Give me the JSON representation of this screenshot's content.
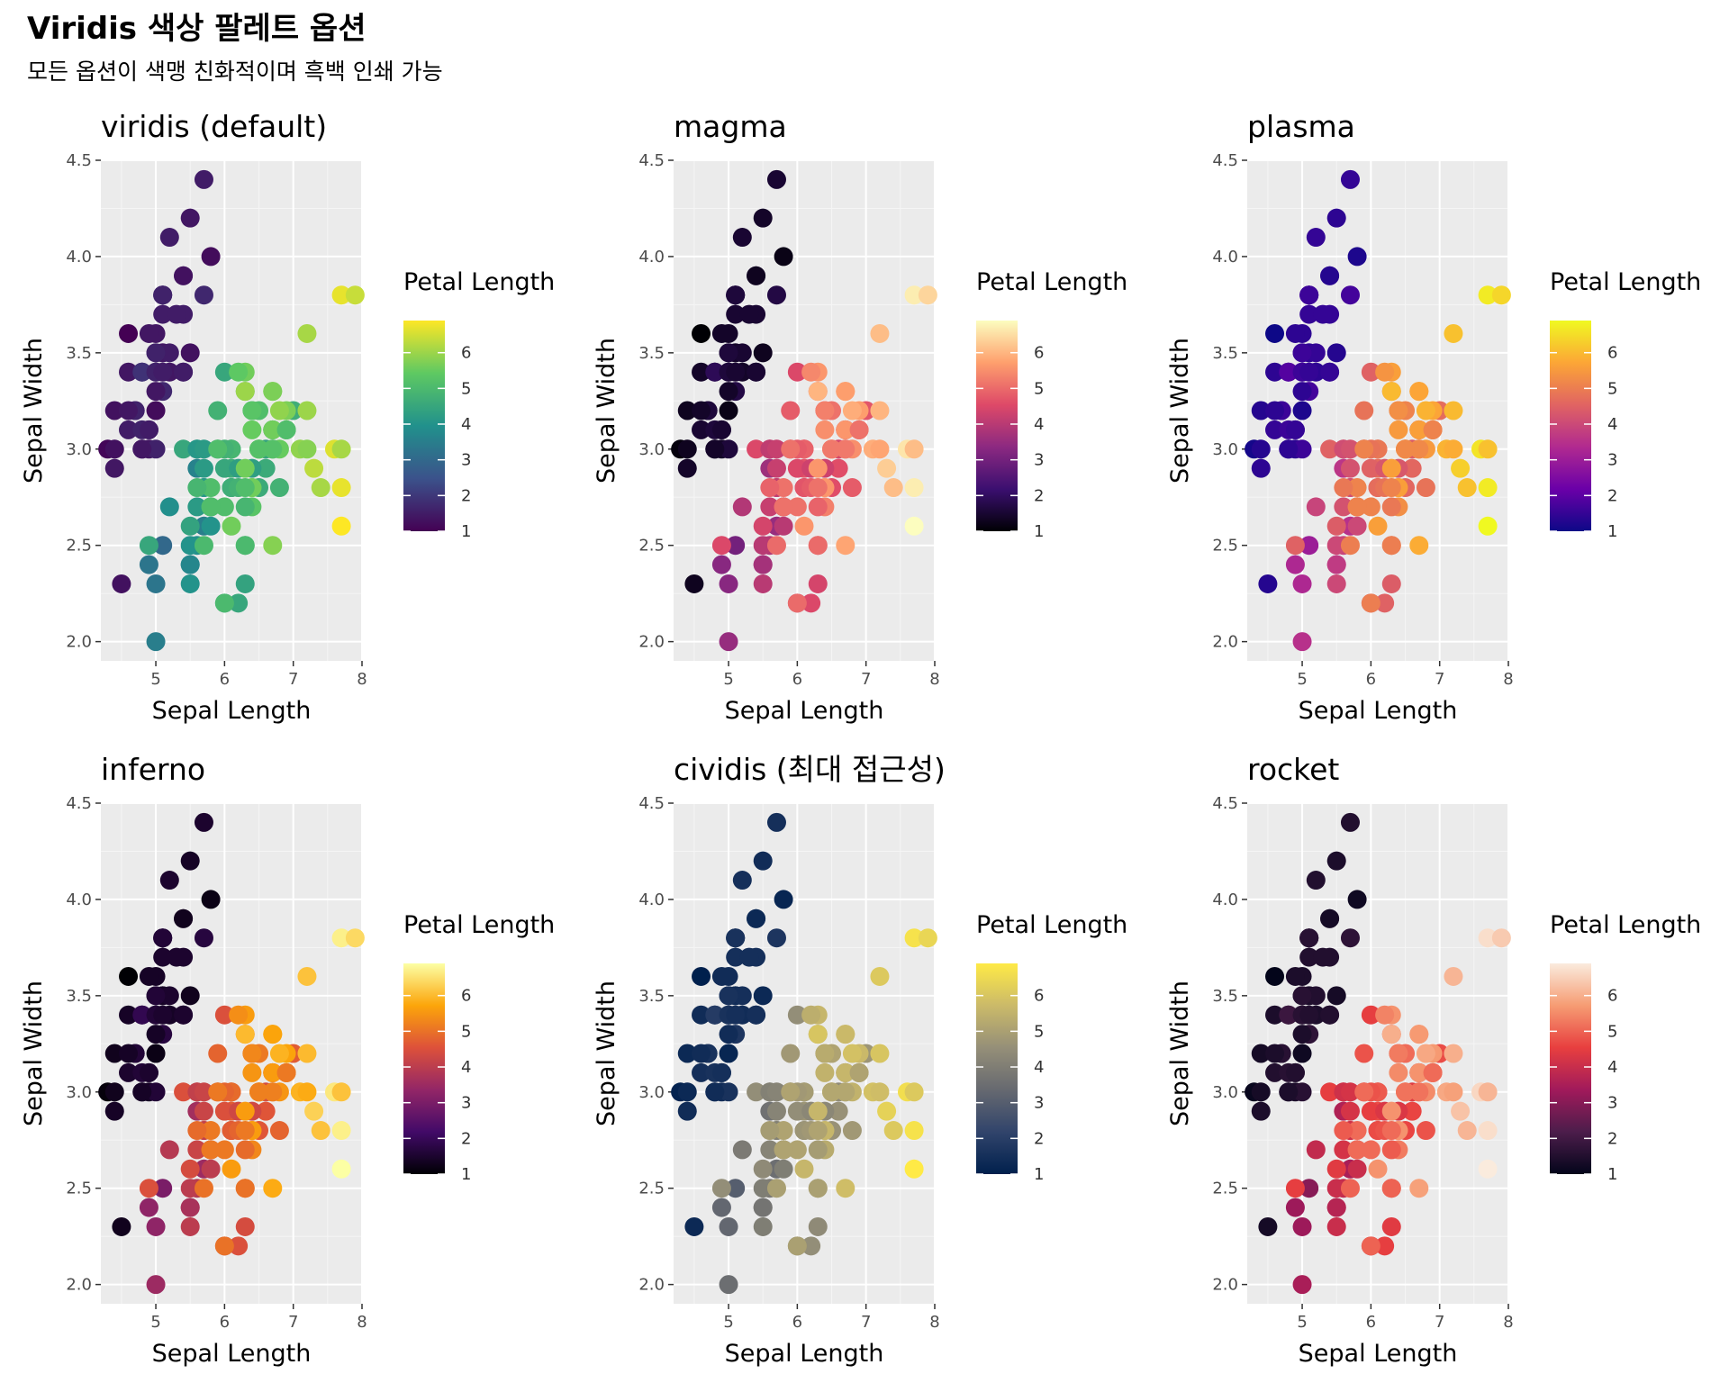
{
  "title": "Viridis 색상 팔레트 옵션",
  "subtitle": "모든 옵션이 색맹 친화적이며 흑백 인쇄 가능",
  "chart_data": {
    "type": "scatter",
    "xlabel": "Sepal Length",
    "ylabel": "Sepal Width",
    "xlim": [
      4.2,
      8.0
    ],
    "ylim": [
      1.9,
      4.5
    ],
    "xticks": [
      5,
      6,
      7,
      8
    ],
    "yticks": [
      "2.0",
      "2.5",
      "3.0",
      "3.5",
      "4.0",
      "4.5"
    ],
    "color_variable": "Petal Length",
    "legend_title": "Petal Length",
    "legend_ticks": [
      1,
      2,
      3,
      4,
      5,
      6
    ],
    "color_range": [
      1.0,
      6.9
    ],
    "panels": [
      {
        "title": "viridis (default)",
        "palette": [
          "#440154",
          "#3b528b",
          "#21918c",
          "#5ec962",
          "#fde725"
        ]
      },
      {
        "title": "magma",
        "palette": [
          "#000004",
          "#3b0f70",
          "#8c2981",
          "#de4968",
          "#fe9f6d",
          "#fcfdbf"
        ]
      },
      {
        "title": "plasma",
        "palette": [
          "#0d0887",
          "#6a00a8",
          "#b12a90",
          "#e16462",
          "#fca636",
          "#f0f921"
        ]
      },
      {
        "title": "inferno",
        "palette": [
          "#000004",
          "#420a68",
          "#932667",
          "#dd513a",
          "#fca50a",
          "#fcffa4"
        ]
      },
      {
        "title": "cividis (최대 접근성)",
        "palette": [
          "#00204d",
          "#31446b",
          "#666970",
          "#958f78",
          "#cbba69",
          "#ffea46"
        ]
      },
      {
        "title": "rocket",
        "palette": [
          "#03051a",
          "#4c1d4b",
          "#a11a5b",
          "#e83f3f",
          "#f69c73",
          "#faebdd"
        ]
      }
    ],
    "points": [
      [
        5.1,
        3.5,
        1.4
      ],
      [
        4.9,
        3.0,
        1.4
      ],
      [
        4.7,
        3.2,
        1.3
      ],
      [
        4.6,
        3.1,
        1.5
      ],
      [
        5.0,
        3.6,
        1.4
      ],
      [
        5.4,
        3.9,
        1.7
      ],
      [
        4.6,
        3.4,
        1.4
      ],
      [
        5.0,
        3.4,
        1.5
      ],
      [
        4.4,
        2.9,
        1.4
      ],
      [
        4.9,
        3.1,
        1.5
      ],
      [
        5.4,
        3.7,
        1.5
      ],
      [
        4.8,
        3.4,
        1.6
      ],
      [
        4.8,
        3.0,
        1.4
      ],
      [
        4.3,
        3.0,
        1.1
      ],
      [
        5.8,
        4.0,
        1.2
      ],
      [
        5.7,
        4.4,
        1.5
      ],
      [
        5.4,
        3.9,
        1.3
      ],
      [
        5.1,
        3.5,
        1.4
      ],
      [
        5.7,
        3.8,
        1.7
      ],
      [
        5.1,
        3.8,
        1.5
      ],
      [
        5.4,
        3.4,
        1.7
      ],
      [
        5.1,
        3.7,
        1.5
      ],
      [
        4.6,
        3.6,
        1.0
      ],
      [
        5.1,
        3.3,
        1.7
      ],
      [
        4.8,
        3.4,
        1.9
      ],
      [
        5.0,
        3.0,
        1.6
      ],
      [
        5.0,
        3.4,
        1.6
      ],
      [
        5.2,
        3.5,
        1.5
      ],
      [
        5.2,
        3.4,
        1.4
      ],
      [
        4.7,
        3.2,
        1.6
      ],
      [
        4.8,
        3.1,
        1.6
      ],
      [
        5.4,
        3.4,
        1.5
      ],
      [
        5.2,
        4.1,
        1.5
      ],
      [
        5.5,
        4.2,
        1.4
      ],
      [
        4.9,
        3.1,
        1.5
      ],
      [
        5.0,
        3.2,
        1.2
      ],
      [
        5.5,
        3.5,
        1.3
      ],
      [
        4.9,
        3.6,
        1.4
      ],
      [
        4.4,
        3.0,
        1.3
      ],
      [
        5.1,
        3.4,
        1.5
      ],
      [
        5.0,
        3.5,
        1.3
      ],
      [
        4.5,
        2.3,
        1.3
      ],
      [
        4.4,
        3.2,
        1.3
      ],
      [
        5.0,
        3.5,
        1.6
      ],
      [
        5.1,
        3.8,
        1.9
      ],
      [
        4.8,
        3.0,
        1.4
      ],
      [
        5.1,
        3.8,
        1.6
      ],
      [
        4.6,
        3.2,
        1.4
      ],
      [
        5.3,
        3.7,
        1.5
      ],
      [
        5.0,
        3.3,
        1.4
      ],
      [
        7.0,
        3.2,
        4.7
      ],
      [
        6.4,
        3.2,
        4.5
      ],
      [
        6.9,
        3.1,
        4.9
      ],
      [
        5.5,
        2.3,
        4.0
      ],
      [
        6.5,
        2.8,
        4.6
      ],
      [
        5.7,
        2.8,
        4.5
      ],
      [
        6.3,
        3.3,
        4.7
      ],
      [
        4.9,
        2.4,
        3.3
      ],
      [
        6.6,
        2.9,
        4.6
      ],
      [
        5.2,
        2.7,
        3.9
      ],
      [
        5.0,
        2.0,
        3.5
      ],
      [
        5.9,
        3.0,
        4.2
      ],
      [
        6.0,
        2.2,
        4.0
      ],
      [
        6.1,
        2.9,
        4.7
      ],
      [
        5.6,
        2.9,
        3.6
      ],
      [
        6.7,
        3.1,
        4.4
      ],
      [
        5.6,
        3.0,
        4.5
      ],
      [
        5.8,
        2.7,
        4.1
      ],
      [
        6.2,
        2.2,
        4.5
      ],
      [
        5.6,
        2.5,
        3.9
      ],
      [
        5.9,
        3.2,
        4.8
      ],
      [
        6.1,
        2.8,
        4.0
      ],
      [
        6.3,
        2.5,
        4.9
      ],
      [
        6.1,
        2.8,
        4.7
      ],
      [
        6.4,
        2.9,
        4.3
      ],
      [
        6.6,
        3.0,
        4.4
      ],
      [
        6.8,
        2.8,
        4.8
      ],
      [
        6.7,
        3.0,
        5.0
      ],
      [
        6.0,
        2.9,
        4.5
      ],
      [
        5.7,
        2.6,
        3.5
      ],
      [
        5.5,
        2.4,
        3.8
      ],
      [
        5.5,
        2.4,
        3.7
      ],
      [
        5.8,
        2.7,
        3.9
      ],
      [
        6.0,
        2.7,
        5.1
      ],
      [
        5.4,
        3.0,
        4.5
      ],
      [
        6.0,
        3.4,
        4.5
      ],
      [
        6.7,
        3.1,
        4.7
      ],
      [
        6.3,
        2.3,
        4.4
      ],
      [
        5.6,
        3.0,
        4.1
      ],
      [
        5.5,
        2.5,
        4.0
      ],
      [
        5.5,
        2.6,
        4.4
      ],
      [
        6.1,
        3.0,
        4.6
      ],
      [
        5.8,
        2.6,
        4.0
      ],
      [
        5.0,
        2.3,
        3.3
      ],
      [
        5.6,
        2.7,
        4.2
      ],
      [
        5.7,
        3.0,
        4.2
      ],
      [
        5.7,
        2.9,
        4.2
      ],
      [
        6.2,
        2.9,
        4.3
      ],
      [
        5.1,
        2.5,
        3.0
      ],
      [
        5.7,
        2.8,
        4.1
      ],
      [
        6.3,
        3.3,
        6.0
      ],
      [
        5.8,
        2.7,
        5.1
      ],
      [
        7.1,
        3.0,
        5.9
      ],
      [
        6.3,
        2.9,
        5.6
      ],
      [
        6.5,
        3.0,
        5.8
      ],
      [
        7.6,
        3.0,
        6.6
      ],
      [
        4.9,
        2.5,
        4.5
      ],
      [
        7.3,
        2.9,
        6.3
      ],
      [
        6.7,
        2.5,
        5.8
      ],
      [
        7.2,
        3.6,
        6.1
      ],
      [
        6.5,
        3.2,
        5.1
      ],
      [
        6.4,
        2.7,
        5.3
      ],
      [
        6.8,
        3.0,
        5.5
      ],
      [
        5.7,
        2.5,
        5.0
      ],
      [
        5.8,
        2.8,
        5.1
      ],
      [
        6.4,
        3.2,
        5.3
      ],
      [
        6.5,
        3.0,
        5.5
      ],
      [
        7.7,
        3.8,
        6.7
      ],
      [
        7.7,
        2.6,
        6.9
      ],
      [
        6.0,
        2.2,
        5.0
      ],
      [
        6.9,
        3.2,
        5.7
      ],
      [
        5.6,
        2.8,
        4.9
      ],
      [
        7.7,
        2.8,
        6.7
      ],
      [
        6.3,
        2.7,
        4.9
      ],
      [
        6.7,
        3.3,
        5.7
      ],
      [
        7.2,
        3.2,
        6.0
      ],
      [
        6.2,
        2.8,
        4.8
      ],
      [
        6.1,
        3.0,
        4.9
      ],
      [
        6.4,
        2.8,
        5.6
      ],
      [
        7.2,
        3.0,
        5.8
      ],
      [
        7.4,
        2.8,
        6.1
      ],
      [
        7.9,
        3.8,
        6.4
      ],
      [
        6.4,
        2.8,
        5.6
      ],
      [
        6.3,
        2.8,
        5.1
      ],
      [
        6.1,
        2.6,
        5.6
      ],
      [
        7.7,
        3.0,
        6.1
      ],
      [
        6.3,
        3.4,
        5.6
      ],
      [
        6.4,
        3.1,
        5.5
      ],
      [
        6.0,
        3.0,
        4.8
      ],
      [
        6.9,
        3.1,
        5.4
      ],
      [
        6.7,
        3.1,
        5.6
      ],
      [
        6.9,
        3.1,
        5.1
      ],
      [
        5.8,
        2.7,
        5.1
      ],
      [
        6.8,
        3.2,
        5.9
      ],
      [
        6.7,
        3.3,
        5.7
      ],
      [
        6.7,
        3.0,
        5.2
      ],
      [
        6.3,
        2.5,
        5.0
      ],
      [
        6.5,
        3.0,
        5.2
      ],
      [
        6.2,
        3.4,
        5.4
      ],
      [
        5.9,
        3.0,
        5.1
      ]
    ]
  }
}
